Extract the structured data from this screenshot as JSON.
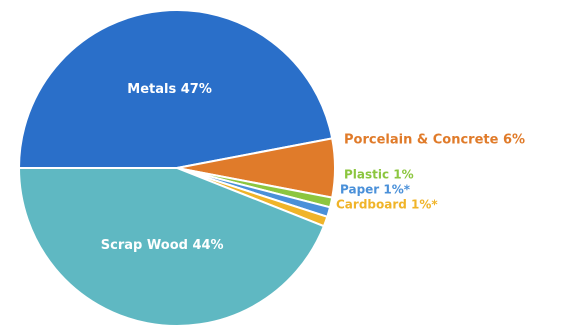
{
  "chart_data": {
    "type": "pie",
    "slices": [
      {
        "label": "Metals 47%",
        "value": 47,
        "color": "#2a6fc9"
      },
      {
        "label": "Porcelain & Concrete 6%",
        "value": 6,
        "color": "#e07b2a"
      },
      {
        "label": "Plastic 1%",
        "value": 1,
        "color": "#8cc63f"
      },
      {
        "label": "Paper 1%*",
        "value": 1,
        "color": "#4a90d9"
      },
      {
        "label": "Cardboard 1%*",
        "value": 1,
        "color": "#f0b429"
      },
      {
        "label": "Scrap Wood 44%",
        "value": 44,
        "color": "#5fb8c2"
      }
    ]
  }
}
